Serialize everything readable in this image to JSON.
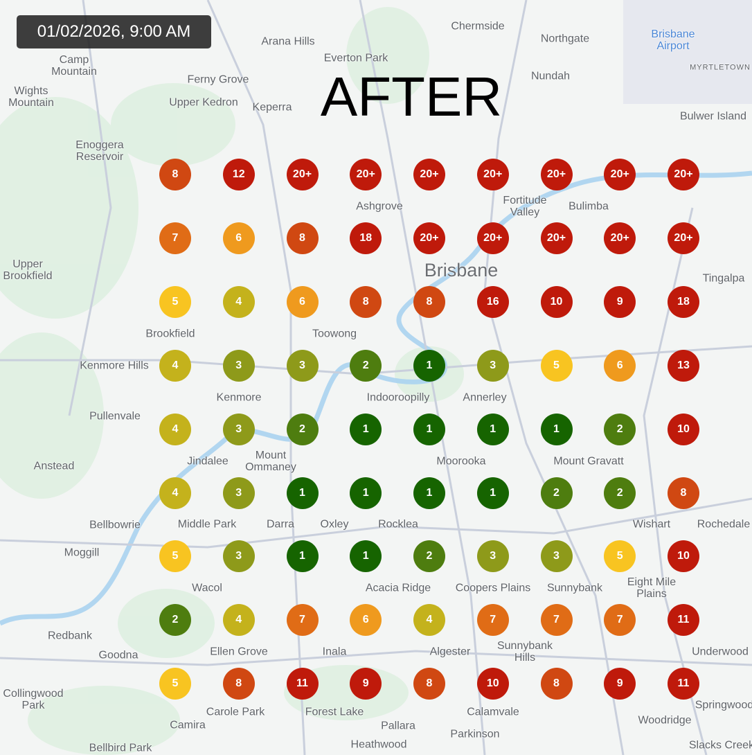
{
  "timestamp": "01/02/2026, 9:00 AM",
  "title": "AFTER",
  "map_labels": [
    "Chermside",
    "Northgate",
    "Nundah",
    "Brisbane\nAirport",
    "MYRTLETOWN",
    "Bulwer Island",
    "Arana Hills",
    "Everton Park",
    "Ferny Grove",
    "Upper Kedron",
    "Keperra",
    "Camp\nMountain",
    "Enoggera\nReservoir",
    "Ashgrove",
    "Bulimba",
    "Fortitude\nValley",
    "Brisbane",
    "Tingalpa",
    "Upper\nBrookfield",
    "Toowong",
    "Brookfield",
    "Kenmore Hills",
    "Kenmore",
    "Indooroopilly",
    "Annerley",
    "Pullenvale",
    "Jindalee",
    "Moorooka",
    "Mount Gravatt",
    "Anstead",
    "Mount\nOmmaney",
    "Middle Park",
    "Oxley",
    "Darra",
    "Rocklea",
    "Wishart",
    "Bellbowrie",
    "Moggill",
    "Coopers Plains",
    "Sunnybank",
    "Eight Mile\nPlains",
    "Rochedale",
    "Wacol",
    "Acacia Ridge",
    "Inala",
    "Sunnybank\nHills",
    "Underwood",
    "Redbank",
    "Goodna",
    "Ellen Grove",
    "Algester",
    "Springwood",
    "Carole Park",
    "Calamvale",
    "Forest Lake",
    "Pallara",
    "Collingwood\nPark",
    "Woodridge",
    "Camira",
    "Heathwood",
    "Parkinson",
    "Bellbird Park",
    "Slacks Creek",
    "Wights\nMountain"
  ],
  "rank_colors": {
    "1": "#166400",
    "2": "#4e7d0f",
    "3": "#8e9a1a",
    "4": "#c4b21c",
    "5": "#f8c421",
    "6": "#ef9a1e",
    "7": "#e06c16",
    "8": "#d04812",
    "9+": "#bf1a0b"
  },
  "grid": [
    [
      "8",
      "12",
      "20+",
      "20+",
      "20+",
      "20+",
      "20+",
      "20+",
      "20+"
    ],
    [
      "7",
      "6",
      "8",
      "18",
      "20+",
      "20+",
      "20+",
      "20+",
      "20+"
    ],
    [
      "5",
      "4",
      "6",
      "8",
      "8",
      "16",
      "10",
      "9",
      "18"
    ],
    [
      "4",
      "3",
      "3",
      "2",
      "1",
      "3",
      "5",
      "6",
      "13"
    ],
    [
      "4",
      "3",
      "2",
      "1",
      "1",
      "1",
      "1",
      "2",
      "10"
    ],
    [
      "4",
      "3",
      "1",
      "1",
      "1",
      "1",
      "2",
      "2",
      "8"
    ],
    [
      "5",
      "3",
      "1",
      "1",
      "2",
      "3",
      "3",
      "5",
      "10"
    ],
    [
      "2",
      "4",
      "7",
      "6",
      "4",
      "7",
      "7",
      "7",
      "11"
    ],
    [
      "5",
      "8",
      "11",
      "9",
      "8",
      "10",
      "8",
      "9",
      "11"
    ]
  ]
}
